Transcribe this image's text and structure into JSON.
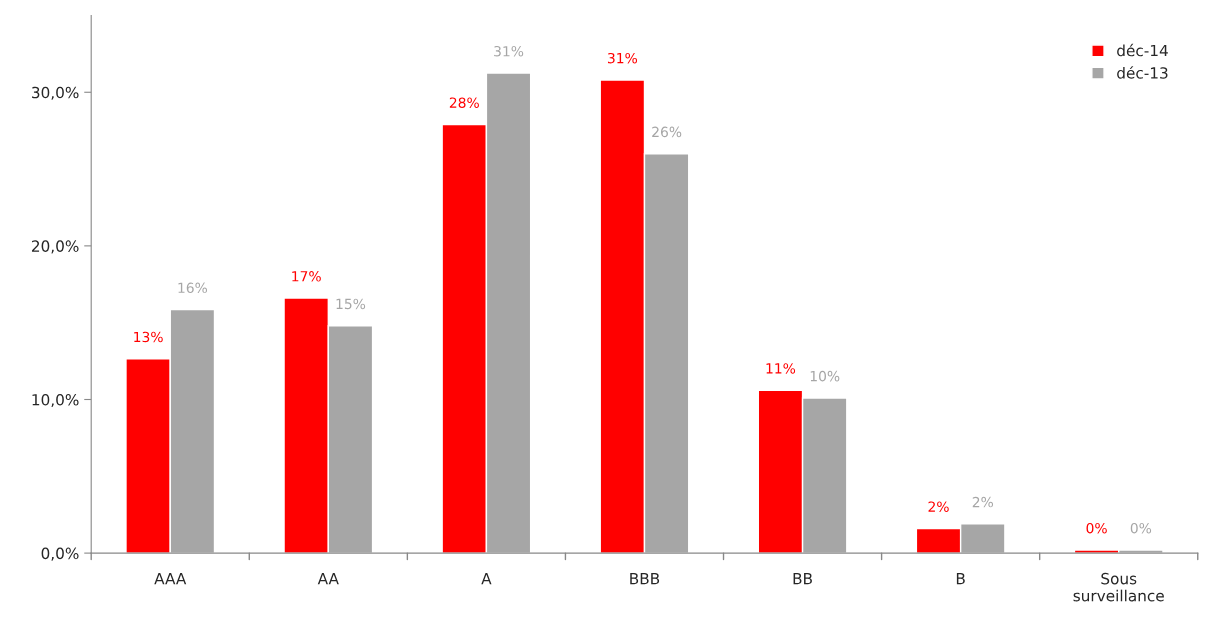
{
  "chart_data": {
    "type": "bar",
    "categories": [
      "AAA",
      "AA",
      "A",
      "BBB",
      "BB",
      "B",
      "Sous\nsurveillance"
    ],
    "series": [
      {
        "name": "déc-14",
        "color": "#ff0000",
        "values": [
          12.65,
          16.6,
          27.9,
          30.8,
          10.6,
          1.6,
          0.2
        ],
        "value_labels": [
          "13%",
          "17%",
          "28%",
          "31%",
          "11%",
          "2%",
          "0%"
        ]
      },
      {
        "name": "déc-13",
        "color": "#a6a6a6",
        "values": [
          15.85,
          14.8,
          31.25,
          26.0,
          10.1,
          1.9,
          0.2
        ],
        "value_labels": [
          "16%",
          "15%",
          "31%",
          "26%",
          "10%",
          "2%",
          "0%"
        ]
      }
    ],
    "ylim": [
      0,
      35
    ],
    "yticks": [
      {
        "value": 0,
        "label": "0,0%"
      },
      {
        "value": 10,
        "label": "10,0%"
      },
      {
        "value": 20,
        "label": "20,0%"
      },
      {
        "value": 30,
        "label": "30,0%"
      }
    ],
    "grid": false,
    "legend": "top right"
  }
}
